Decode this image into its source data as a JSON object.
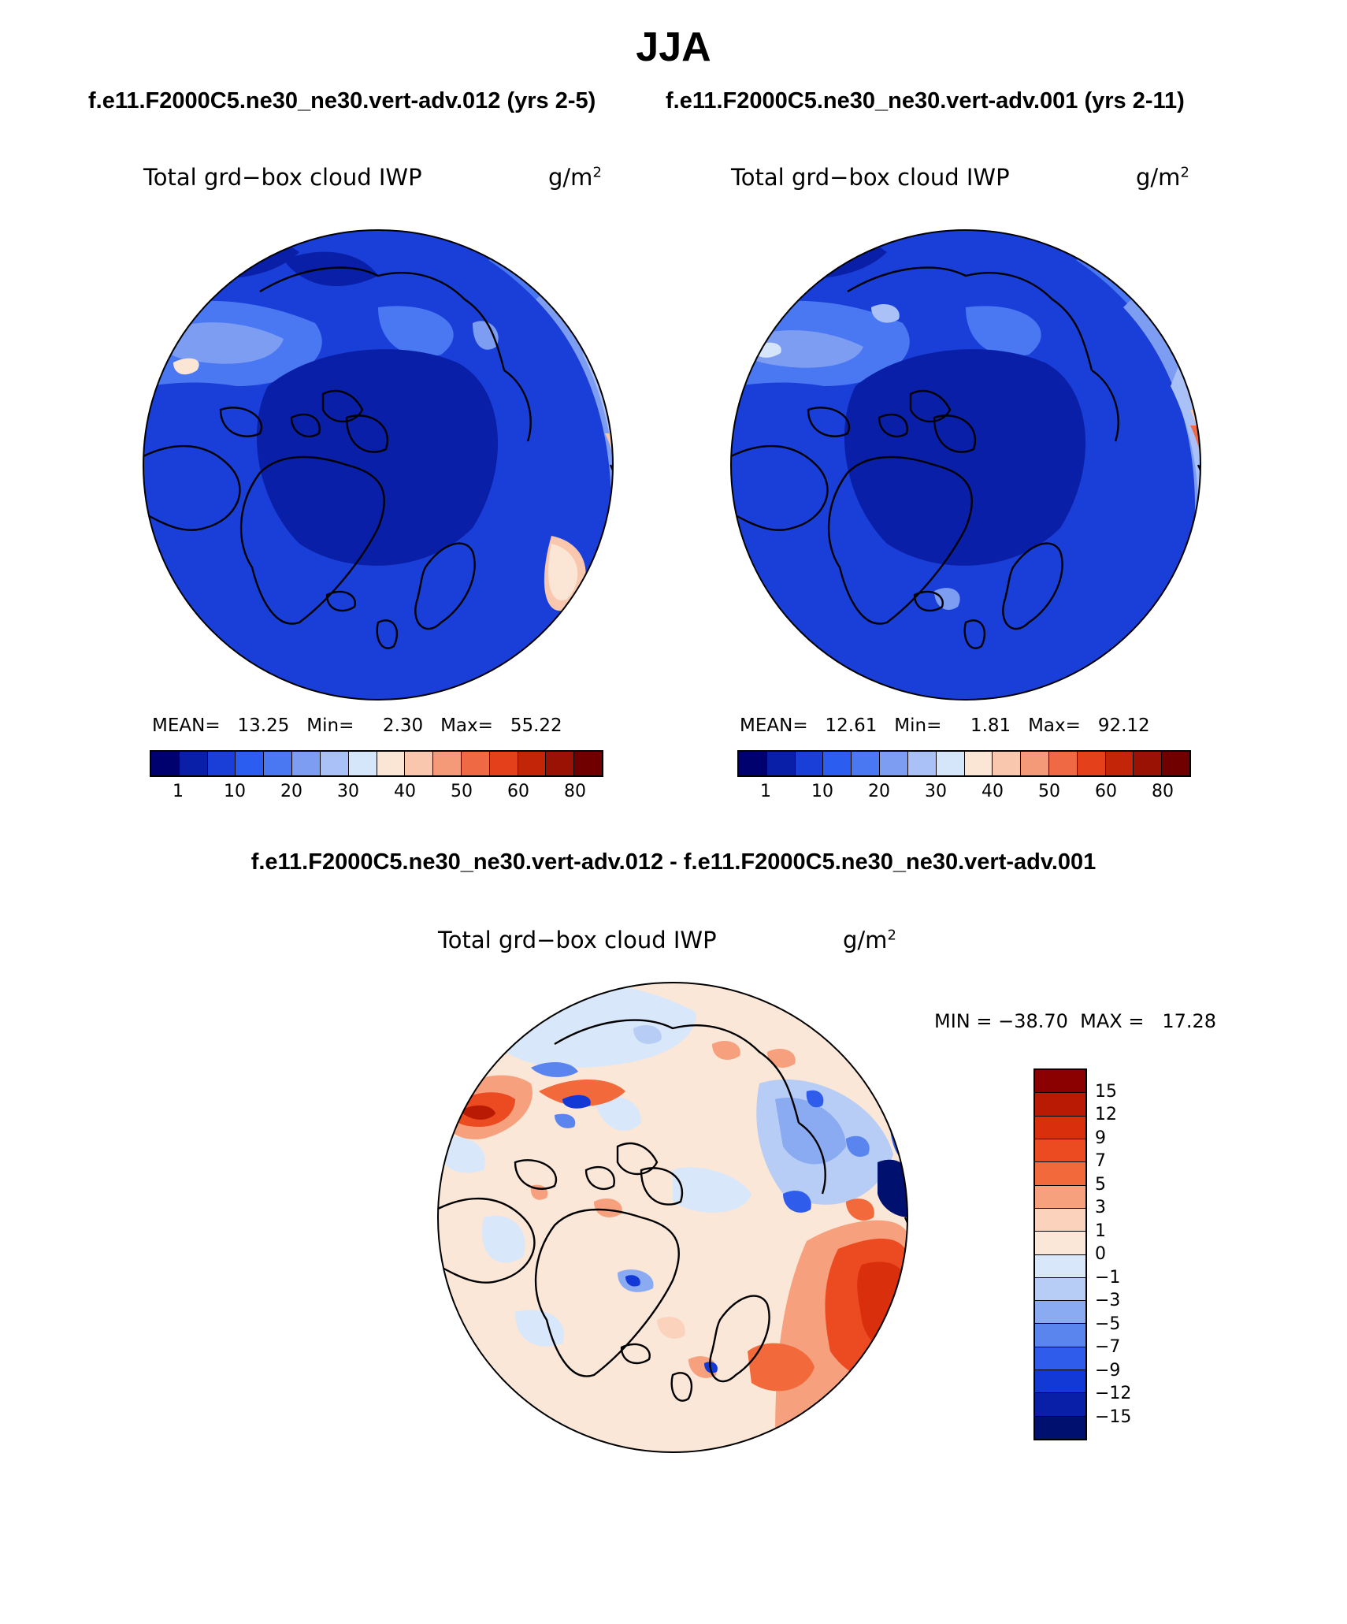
{
  "figure": {
    "season": "JJA",
    "case1_title": "f.e11.F2000C5.ne30_ne30.vert-adv.012 (yrs 2-5)",
    "case2_title": "f.e11.F2000C5.ne30_ne30.vert-adv.001 (yrs 2-11)",
    "diff_title": "f.e11.F2000C5.ne30_ne30.vert-adv.012 - f.e11.F2000C5.ne30_ne30.vert-adv.001"
  },
  "panels": [
    {
      "variable": "Total grd−box cloud IWP",
      "units_base": "g/m",
      "units_exp": "2",
      "stats": "MEAN=   13.25   Min=     2.30   Max=   55.22",
      "projection": "north polar stereographic"
    },
    {
      "variable": "Total grd−box cloud IWP",
      "units_base": "g/m",
      "units_exp": "2",
      "stats": "MEAN=   12.61   Min=     1.81   Max=   92.12",
      "projection": "north polar stereographic"
    },
    {
      "variable": "Total grd−box cloud IWP",
      "units_base": "g/m",
      "units_exp": "2",
      "stats": "MIN = −38.70  MAX =   17.28",
      "projection": "north polar stereographic"
    }
  ],
  "colorbar_abs": {
    "labels": [
      "1",
      "10",
      "20",
      "30",
      "40",
      "50",
      "60",
      "80"
    ],
    "colors": [
      "#00006e",
      "#0a1fa8",
      "#1a3fd8",
      "#2b5ef0",
      "#4a78f2",
      "#7d9df3",
      "#a9c1f6",
      "#d6e6fa",
      "#fbe6d6",
      "#f9c7ae",
      "#f59a78",
      "#ef6a44",
      "#e4401c",
      "#c22508",
      "#9a1204",
      "#700000"
    ]
  },
  "colorbar_diff": {
    "labels": [
      "15",
      "12",
      "9",
      "7",
      "5",
      "3",
      "1",
      "0",
      "−1",
      "−3",
      "−5",
      "−7",
      "−9",
      "−12",
      "−15"
    ],
    "colors": [
      "#8b0000",
      "#b81a04",
      "#d92f0c",
      "#ec4a20",
      "#f26a3c",
      "#f7a07e",
      "#fbd2bc",
      "#fbe7d8",
      "#d9e7fa",
      "#b7cdf6",
      "#8aaaf2",
      "#5a85ef",
      "#2f5ceb",
      "#1239d6",
      "#0a1fa8",
      "#00106e"
    ]
  }
}
